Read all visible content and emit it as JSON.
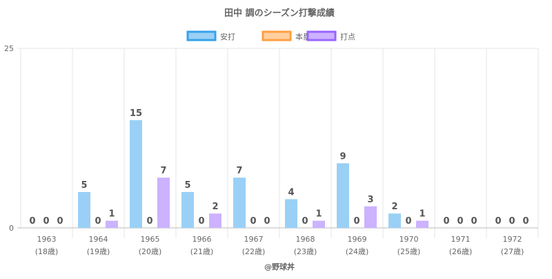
{
  "chart_data": {
    "type": "bar",
    "title": "田中 調のシーズン打撃成績",
    "categories": [
      "1963",
      "1964",
      "1965",
      "1966",
      "1967",
      "1968",
      "1969",
      "1970",
      "1971",
      "1972"
    ],
    "sublabels": [
      "(18歳)",
      "(19歳)",
      "(20歳)",
      "(21歳)",
      "(22歳)",
      "(23歳)",
      "(24歳)",
      "(25歳)",
      "(26歳)",
      "(27歳)"
    ],
    "series": [
      {
        "name": "安打",
        "values": [
          0,
          5,
          15,
          5,
          7,
          4,
          9,
          2,
          0,
          0
        ],
        "fill": "#9ad0f5",
        "stroke": "#36a2eb"
      },
      {
        "name": "本塁打",
        "values": [
          0,
          0,
          0,
          0,
          0,
          0,
          0,
          0,
          0,
          0
        ],
        "fill": "#ffcf9f",
        "stroke": "#ff9f40"
      },
      {
        "name": "打点",
        "values": [
          0,
          1,
          7,
          2,
          0,
          1,
          3,
          1,
          0,
          0
        ],
        "fill": "#ccb2ff",
        "stroke": "#9966ff"
      }
    ],
    "ylim": [
      0,
      25
    ],
    "yticks": [
      0,
      25
    ],
    "legend": "top",
    "grid": true,
    "credit": "@野球丼"
  }
}
